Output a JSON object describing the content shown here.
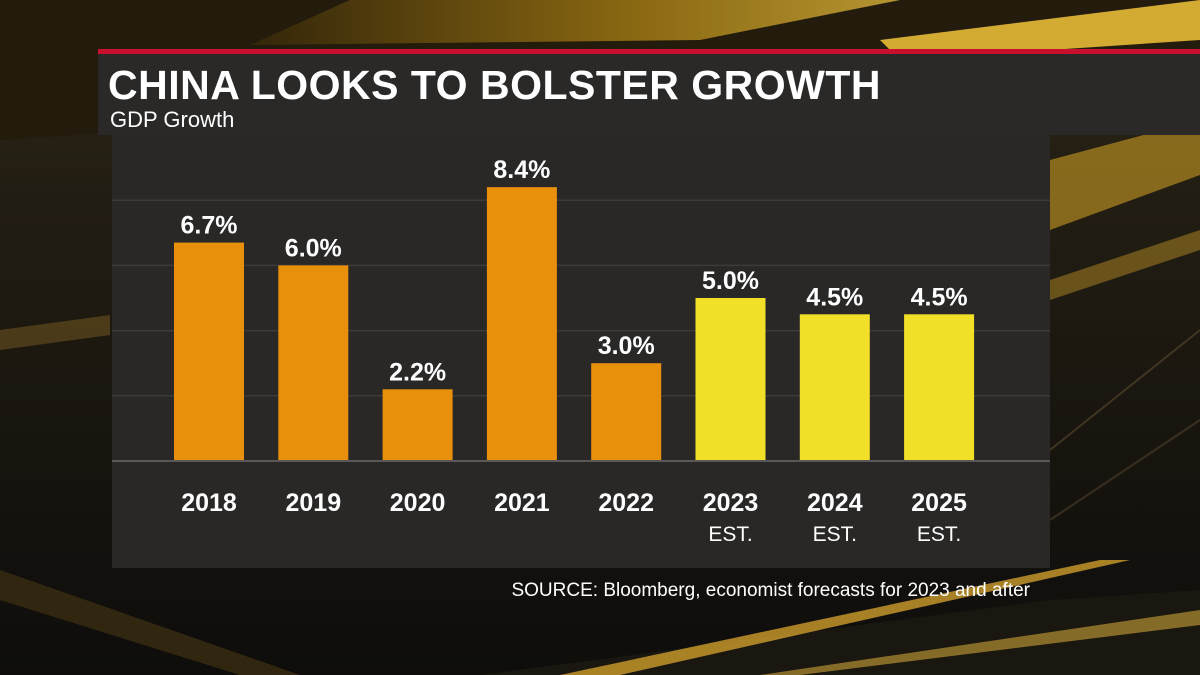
{
  "header": {
    "title": "CHINA LOOKS TO BOLSTER GROWTH",
    "subtitle": "GDP Growth"
  },
  "footer": {
    "source": "SOURCE: Bloomberg, economist forecasts for 2023 and after"
  },
  "colors": {
    "actual": "#e8900c",
    "estimate": "#f2df28",
    "accent": "#c8102e"
  },
  "chart_data": {
    "type": "bar",
    "title": "CHINA LOOKS TO BOLSTER GROWTH",
    "subtitle": "GDP Growth",
    "categories": [
      "2018",
      "2019",
      "2020",
      "2021",
      "2022",
      "2023",
      "2024",
      "2025"
    ],
    "category_sublabels": [
      "",
      "",
      "",
      "",
      "",
      "EST.",
      "EST.",
      "EST."
    ],
    "values": [
      6.7,
      6.0,
      2.2,
      8.4,
      3.0,
      5.0,
      4.5,
      4.5
    ],
    "value_labels": [
      "6.7%",
      "6.0%",
      "2.2%",
      "8.4%",
      "3.0%",
      "5.0%",
      "4.5%",
      "4.5%"
    ],
    "estimate": [
      false,
      false,
      false,
      false,
      false,
      true,
      true,
      true
    ],
    "ylim": [
      0,
      10
    ],
    "grid": true,
    "xlabel": "",
    "ylabel": ""
  }
}
